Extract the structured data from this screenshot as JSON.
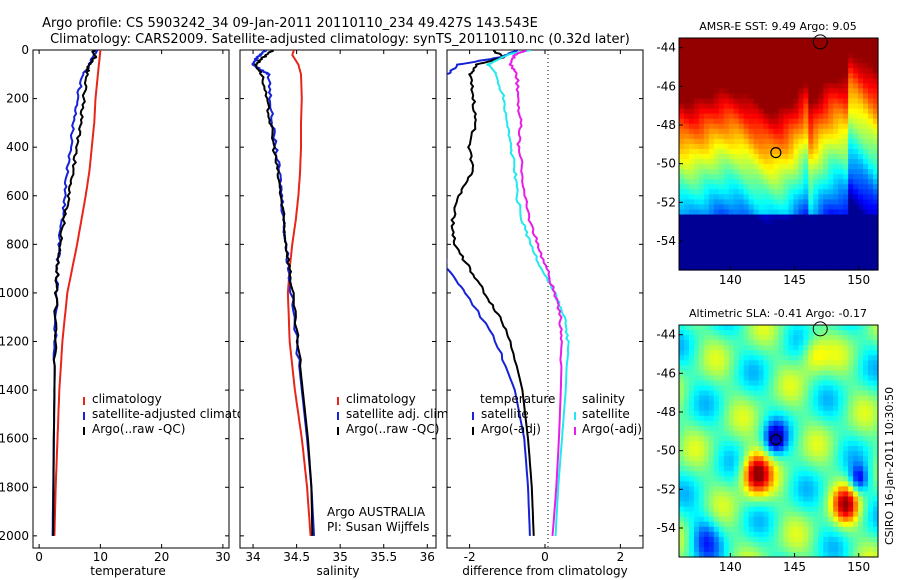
{
  "title_line1": "Argo profile: CS 5903242_34 09-Jan-2011 20110110_234 49.427S 143.543E",
  "title_line2": "Climatology: CARS2009. Satellite-adjusted climatology: synTS_20110110.nc (0.32d later)",
  "side_label": "CSIRO 16-Jan-2011 10:30:50",
  "colors": {
    "climatology": "#e8251a",
    "satellite": "#1522d8",
    "argo": "#000000",
    "adj": "#e81ee8",
    "cyan": "#22e8f0"
  },
  "chart_data": [
    {
      "type": "line",
      "xlabel": "temperature",
      "xlim": [
        -1,
        31
      ],
      "xticks": [
        "0",
        "10",
        "20",
        "30"
      ],
      "ylim": [
        0,
        2050
      ],
      "yticks": [
        "0",
        "200",
        "400",
        "600",
        "800",
        "1000",
        "1200",
        "1400",
        "1600",
        "1800",
        "2000"
      ],
      "legend": [
        "climatology",
        "satellite-adjusted climatolog",
        "Argo(..raw -QC)"
      ],
      "series": [
        {
          "name": "climatology",
          "color": "#e8251a",
          "depth": [
            0,
            100,
            200,
            300,
            400,
            500,
            600,
            700,
            800,
            900,
            1000,
            1200,
            1400,
            1600,
            1800,
            2000
          ],
          "values": [
            10,
            9.6,
            9.2,
            9,
            8.6,
            8.2,
            7.6,
            6.9,
            6.2,
            5.4,
            4.6,
            3.8,
            3.3,
            3.0,
            2.7,
            2.5
          ]
        },
        {
          "name": "satellite-adjusted climatolog",
          "color": "#1522d8",
          "depth": [
            0,
            50,
            100,
            200,
            300,
            400,
            500,
            600,
            700,
            800,
            900,
            1000,
            1200,
            1400,
            1600,
            1800,
            2000
          ],
          "values": [
            9.3,
            8.5,
            7.2,
            6.2,
            5.6,
            5.1,
            4.6,
            4.2,
            3.8,
            3.3,
            3.0,
            2.8,
            2.6,
            2.5,
            2.4,
            2.3,
            2.2
          ]
        },
        {
          "name": "Argo(..raw -QC)",
          "color": "#000000",
          "depth": [
            0,
            30,
            60,
            100,
            200,
            300,
            400,
            500,
            600,
            700,
            800,
            900,
            1000,
            1200,
            1400,
            1600,
            1800,
            2000
          ],
          "values": [
            8.8,
            9.2,
            8.2,
            7.8,
            7.3,
            6.8,
            6.2,
            5.5,
            4.8,
            4.1,
            3.4,
            3.0,
            2.8,
            2.6,
            2.5,
            2.4,
            2.35,
            2.3
          ]
        }
      ]
    },
    {
      "type": "line",
      "xlabel": "salinity",
      "xlim": [
        33.85,
        36.1
      ],
      "xticks": [
        "34",
        "34.5",
        "35",
        "35.5",
        "36"
      ],
      "ylim": [
        0,
        2050
      ],
      "legend": [
        "climatology",
        "satellite adj. clim.",
        "Argo(..raw -QC)"
      ],
      "annotation_line1": "Argo AUSTRALIA",
      "annotation_line2": "PI: Susan Wijffels",
      "series": [
        {
          "name": "climatology",
          "color": "#e8251a",
          "depth": [
            0,
            20,
            60,
            100,
            200,
            300,
            400,
            500,
            600,
            700,
            800,
            900,
            1000,
            1200,
            1400,
            1600,
            1800,
            2000
          ],
          "values": [
            34.47,
            34.45,
            34.52,
            34.55,
            34.56,
            34.55,
            34.55,
            34.54,
            34.52,
            34.49,
            34.45,
            34.42,
            34.4,
            34.42,
            34.48,
            34.56,
            34.62,
            34.66
          ]
        },
        {
          "name": "satellite adj. clim.",
          "color": "#1522d8",
          "depth": [
            0,
            30,
            60,
            80,
            100,
            200,
            300,
            400,
            500,
            600,
            700,
            800,
            900,
            1000,
            1200,
            1400,
            1600,
            1800,
            2000
          ],
          "values": [
            34.15,
            34.05,
            34.0,
            34.08,
            34.18,
            34.2,
            34.22,
            34.26,
            34.3,
            34.33,
            34.35,
            34.38,
            34.41,
            34.44,
            34.5,
            34.56,
            34.62,
            34.67,
            34.7
          ]
        },
        {
          "name": "Argo(..raw -QC)",
          "color": "#000000",
          "depth": [
            0,
            30,
            60,
            100,
            200,
            300,
            400,
            500,
            600,
            700,
            800,
            900,
            1000,
            1200,
            1400,
            1600,
            1800,
            2000
          ],
          "values": [
            34.23,
            34.12,
            34.03,
            34.1,
            34.15,
            34.2,
            34.24,
            34.28,
            34.32,
            34.35,
            34.38,
            34.42,
            34.45,
            34.51,
            34.57,
            34.63,
            34.67,
            34.68
          ]
        }
      ]
    },
    {
      "type": "line",
      "xlabel": "difference from climatology",
      "xlim": [
        -2.6,
        2.6
      ],
      "xticks": [
        "-2",
        "0",
        "2"
      ],
      "ylim": [
        0,
        2050
      ],
      "zero_line": true,
      "legend_left": [
        "temperature",
        "satellite",
        "Argo(-adj)"
      ],
      "legend_right": [
        "salinity",
        "satellite",
        "Argo(-adj)"
      ],
      "series": [
        {
          "name": "satellite temperature",
          "color": "#1522d8",
          "depth": [
            0,
            30,
            60,
            100,
            200,
            400,
            600,
            800,
            900,
            1000,
            1200,
            1400,
            1600,
            1800,
            2000
          ],
          "values": [
            -0.7,
            -1.2,
            -2.3,
            -2.6,
            -2.7,
            -2.7,
            -2.7,
            -2.7,
            -2.6,
            -2.1,
            -1.3,
            -0.8,
            -0.55,
            -0.45,
            -0.4
          ]
        },
        {
          "name": "Argo temperature",
          "color": "#000000",
          "depth": [
            0,
            30,
            60,
            100,
            200,
            300,
            400,
            500,
            600,
            700,
            800,
            900,
            1000,
            1100,
            1200,
            1400,
            1600,
            1800,
            2000
          ],
          "values": [
            -1.4,
            -1.1,
            -1.8,
            -2.0,
            -1.9,
            -1.85,
            -2.0,
            -1.9,
            -2.3,
            -2.45,
            -2.4,
            -2.0,
            -1.6,
            -1.2,
            -0.9,
            -0.6,
            -0.45,
            -0.35,
            -0.3
          ]
        },
        {
          "name": "satellite salinity",
          "color": "#22e8f0",
          "depth": [
            0,
            20,
            60,
            100,
            200,
            300,
            400,
            500,
            600,
            700,
            800,
            900,
            1000,
            1100,
            1200,
            1400,
            1600,
            1800,
            2000
          ],
          "values": [
            -0.4,
            -1.0,
            -1.5,
            -1.3,
            -1.1,
            -1.0,
            -0.9,
            -0.8,
            -0.75,
            -0.6,
            -0.4,
            -0.1,
            0.25,
            0.5,
            0.6,
            0.55,
            0.45,
            0.35,
            0.28
          ]
        },
        {
          "name": "Argo salinity",
          "color": "#e81ee8",
          "depth": [
            0,
            20,
            60,
            100,
            200,
            300,
            400,
            500,
            600,
            700,
            800,
            900,
            1000,
            1100,
            1200,
            1400,
            1600,
            1800,
            2000
          ],
          "values": [
            -0.5,
            -0.8,
            -0.9,
            -0.75,
            -0.7,
            -0.65,
            -0.7,
            -0.6,
            -0.55,
            -0.4,
            -0.2,
            0.05,
            0.25,
            0.4,
            0.45,
            0.42,
            0.37,
            0.3,
            0.2
          ]
        }
      ]
    },
    {
      "type": "heatmap",
      "title": "AMSR-E SST: 9.49 Argo: 9.05",
      "xticks": [
        "140",
        "145",
        "150"
      ],
      "yticks": [
        "-44",
        "-46",
        "-48",
        "-50",
        "-52",
        "-54"
      ],
      "xlim": [
        136,
        151.5
      ],
      "ylim": [
        -55.5,
        -43.5
      ],
      "float_position": [
        143.543,
        -49.427
      ],
      "field": "sst"
    },
    {
      "type": "heatmap",
      "title": "Altimetric SLA: -0.41 Argo: -0.17",
      "xticks": [
        "140",
        "145",
        "150"
      ],
      "yticks": [
        "-44",
        "-46",
        "-48",
        "-50",
        "-52",
        "-54"
      ],
      "xlim": [
        136,
        151.5
      ],
      "ylim": [
        -55.5,
        -43.5
      ],
      "float_position": [
        143.543,
        -49.427
      ],
      "field": "sla"
    }
  ]
}
